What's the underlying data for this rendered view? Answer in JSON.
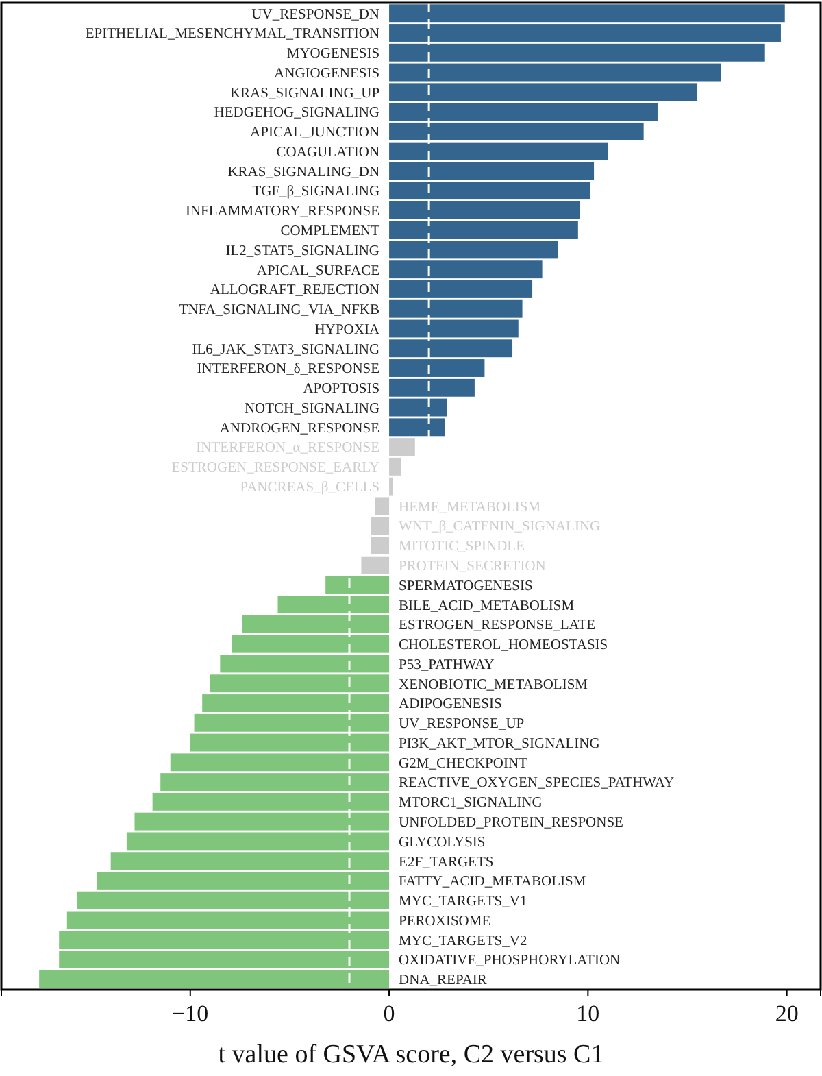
{
  "chart_data": {
    "type": "bar",
    "orientation": "horizontal",
    "xlabel": "t value of GSVA score, C2 versus C1",
    "categories": [
      "UV_RESPONSE_DN",
      "EPITHELIAL_MESENCHYMAL_TRANSITION",
      "MYOGENESIS",
      "ANGIOGENESIS",
      "KRAS_SIGNALING_UP",
      "HEDGEHOG_SIGNALING",
      "APICAL_JUNCTION",
      "COAGULATION",
      "KRAS_SIGNALING_DN",
      "TGF_β_SIGNALING",
      "INFLAMMATORY_RESPONSE",
      "COMPLEMENT",
      "IL2_STAT5_SIGNALING",
      "APICAL_SURFACE",
      "ALLOGRAFT_REJECTION",
      "TNFA_SIGNALING_VIA_NFKB",
      "HYPOXIA",
      "IL6_JAK_STAT3_SIGNALING",
      "INTERFERON_δ_RESPONSE",
      "APOPTOSIS",
      "NOTCH_SIGNALING",
      "ANDROGEN_RESPONSE",
      "INTERFERON_α_RESPONSE",
      "ESTROGEN_RESPONSE_EARLY",
      "PANCREAS_β_CELLS",
      "HEME_METABOLISM",
      "WNT_β_CATENIN_SIGNALING",
      "MITOTIC_SPINDLE",
      "PROTEIN_SECRETION",
      "SPERMATOGENESIS",
      "BILE_ACID_METABOLISM",
      "ESTROGEN_RESPONSE_LATE",
      "CHOLESTEROL_HOMEOSTASIS",
      "P53_PATHWAY",
      "XENOBIOTIC_METABOLISM",
      "ADIPOGENESIS",
      "UV_RESPONSE_UP",
      "PI3K_AKT_MTOR_SIGNALING",
      "G2M_CHECKPOINT",
      "REACTIVE_OXYGEN_SPECIES_PATHWAY",
      "MTORC1_SIGNALING",
      "UNFOLDED_PROTEIN_RESPONSE",
      "GLYCOLYSIS",
      "E2F_TARGETS",
      "FATTY_ACID_METABOLISM",
      "MYC_TARGETS_V1",
      "PEROXISOME",
      "MYC_TARGETS_V2",
      "OXIDATIVE_PHOSPHORYLATION",
      "DNA_REPAIR"
    ],
    "values": [
      19.9,
      19.7,
      18.9,
      16.7,
      15.5,
      13.5,
      12.8,
      11.0,
      10.3,
      10.1,
      9.6,
      9.5,
      8.5,
      7.7,
      7.2,
      6.7,
      6.5,
      6.2,
      4.8,
      4.3,
      2.9,
      2.8,
      1.3,
      0.6,
      0.2,
      -0.7,
      -0.9,
      -0.9,
      -1.4,
      -3.2,
      -5.6,
      -7.4,
      -7.9,
      -8.5,
      -9.0,
      -9.4,
      -9.8,
      -10.0,
      -11.0,
      -11.5,
      -11.9,
      -12.8,
      -13.2,
      -14.0,
      -14.7,
      -15.7,
      -16.2,
      -16.6,
      -16.6,
      -17.6
    ],
    "colors": [
      "#33658f",
      "#33658f",
      "#33658f",
      "#33658f",
      "#33658f",
      "#33658f",
      "#33658f",
      "#33658f",
      "#33658f",
      "#33658f",
      "#33658f",
      "#33658f",
      "#33658f",
      "#33658f",
      "#33658f",
      "#33658f",
      "#33658f",
      "#33658f",
      "#33658f",
      "#33658f",
      "#33658f",
      "#33658f",
      "#cccccc",
      "#cccccc",
      "#cccccc",
      "#cccccc",
      "#cccccc",
      "#cccccc",
      "#cccccc",
      "#7fc57b",
      "#7fc57b",
      "#7fc57b",
      "#7fc57b",
      "#7fc57b",
      "#7fc57b",
      "#7fc57b",
      "#7fc57b",
      "#7fc57b",
      "#7fc57b",
      "#7fc57b",
      "#7fc57b",
      "#7fc57b",
      "#7fc57b",
      "#7fc57b",
      "#7fc57b",
      "#7fc57b",
      "#7fc57b",
      "#7fc57b",
      "#7fc57b",
      "#7fc57b"
    ],
    "xlim": [
      -19.5,
      21.7
    ],
    "xticks": [
      {
        "value": -10,
        "label": "−10"
      },
      0,
      10,
      20
    ],
    "ref_lines": [
      {
        "axis": "x",
        "value": -2,
        "color": "#ffffff",
        "line_style": "dashed"
      },
      {
        "axis": "x",
        "value": 2,
        "color": "#ffffff",
        "line_style": "dashed"
      }
    ],
    "grid": false
  }
}
